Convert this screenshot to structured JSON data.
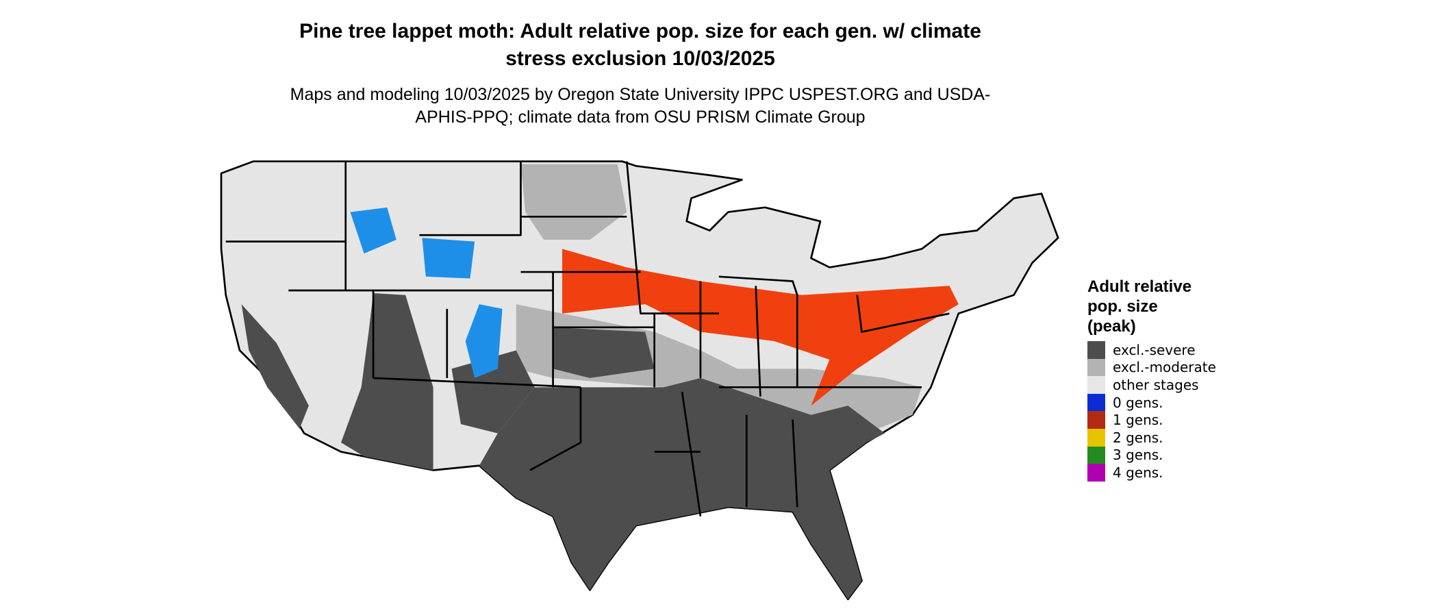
{
  "header": {
    "title": "Pine tree lappet moth: Adult relative pop. size for each gen. w/ climate stress exclusion 10/03/2025",
    "subtitle": "Maps and modeling 10/03/2025 by Oregon State University IPPC USPEST.ORG and USDA-APHIS-PPQ; climate data from OSU PRISM Climate Group"
  },
  "legend": {
    "title": "Adult relative pop. size (peak)",
    "items": [
      {
        "label": "excl.-severe",
        "color": "#4d4d4d"
      },
      {
        "label": "excl.-moderate",
        "color": "#b3b3b3"
      },
      {
        "label": "other stages",
        "color": "#e6e6e6"
      },
      {
        "label": "0 gens.",
        "color": "#0a2bd6"
      },
      {
        "label": "1 gens.",
        "color": "#b22a12"
      },
      {
        "label": "2 gens.",
        "color": "#e6c400"
      },
      {
        "label": "3 gens.",
        "color": "#228b22"
      },
      {
        "label": "4 gens.",
        "color": "#b000b0"
      }
    ]
  }
}
